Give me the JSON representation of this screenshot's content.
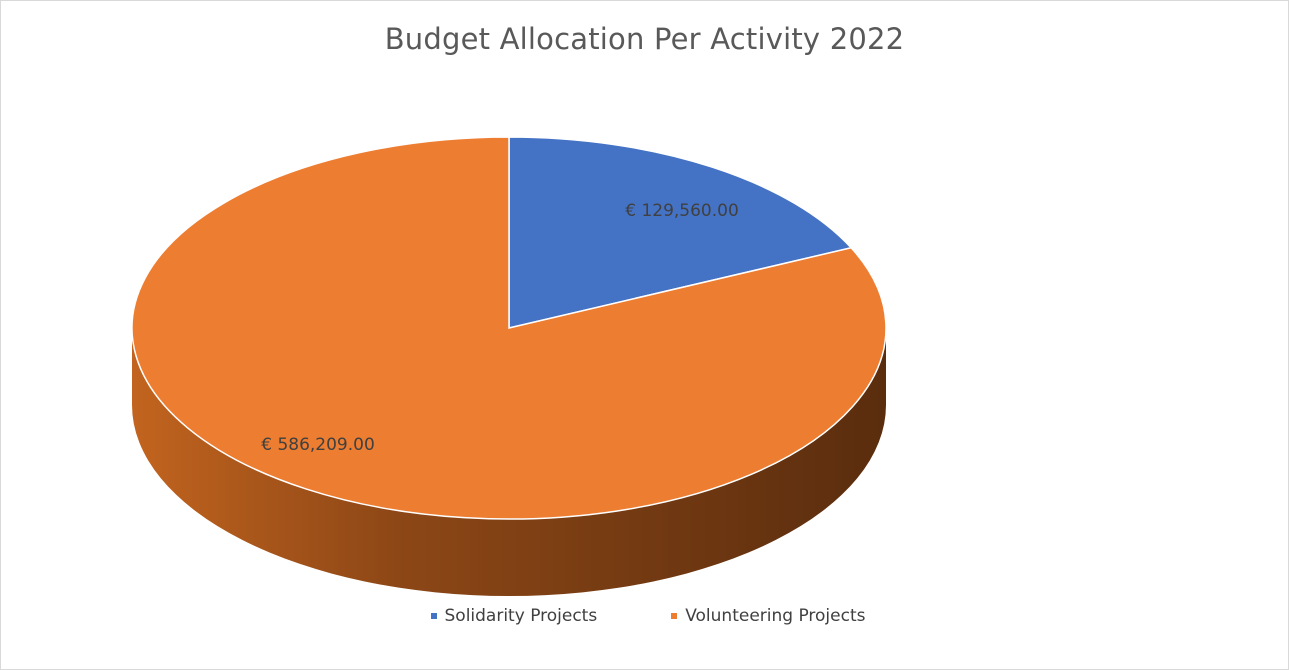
{
  "chart_data": {
    "type": "pie",
    "title": "Budget Allocation Per Activity 2022",
    "categories": [
      "Solidarity Projects",
      "Volunteering Projects"
    ],
    "values": [
      129560.0,
      586209.0
    ],
    "data_labels": [
      "€ 129,560.00",
      "€ 586,209.00"
    ],
    "colors": [
      "#4472C4",
      "#ED7D31"
    ],
    "legend_position": "bottom",
    "style": "3d"
  }
}
